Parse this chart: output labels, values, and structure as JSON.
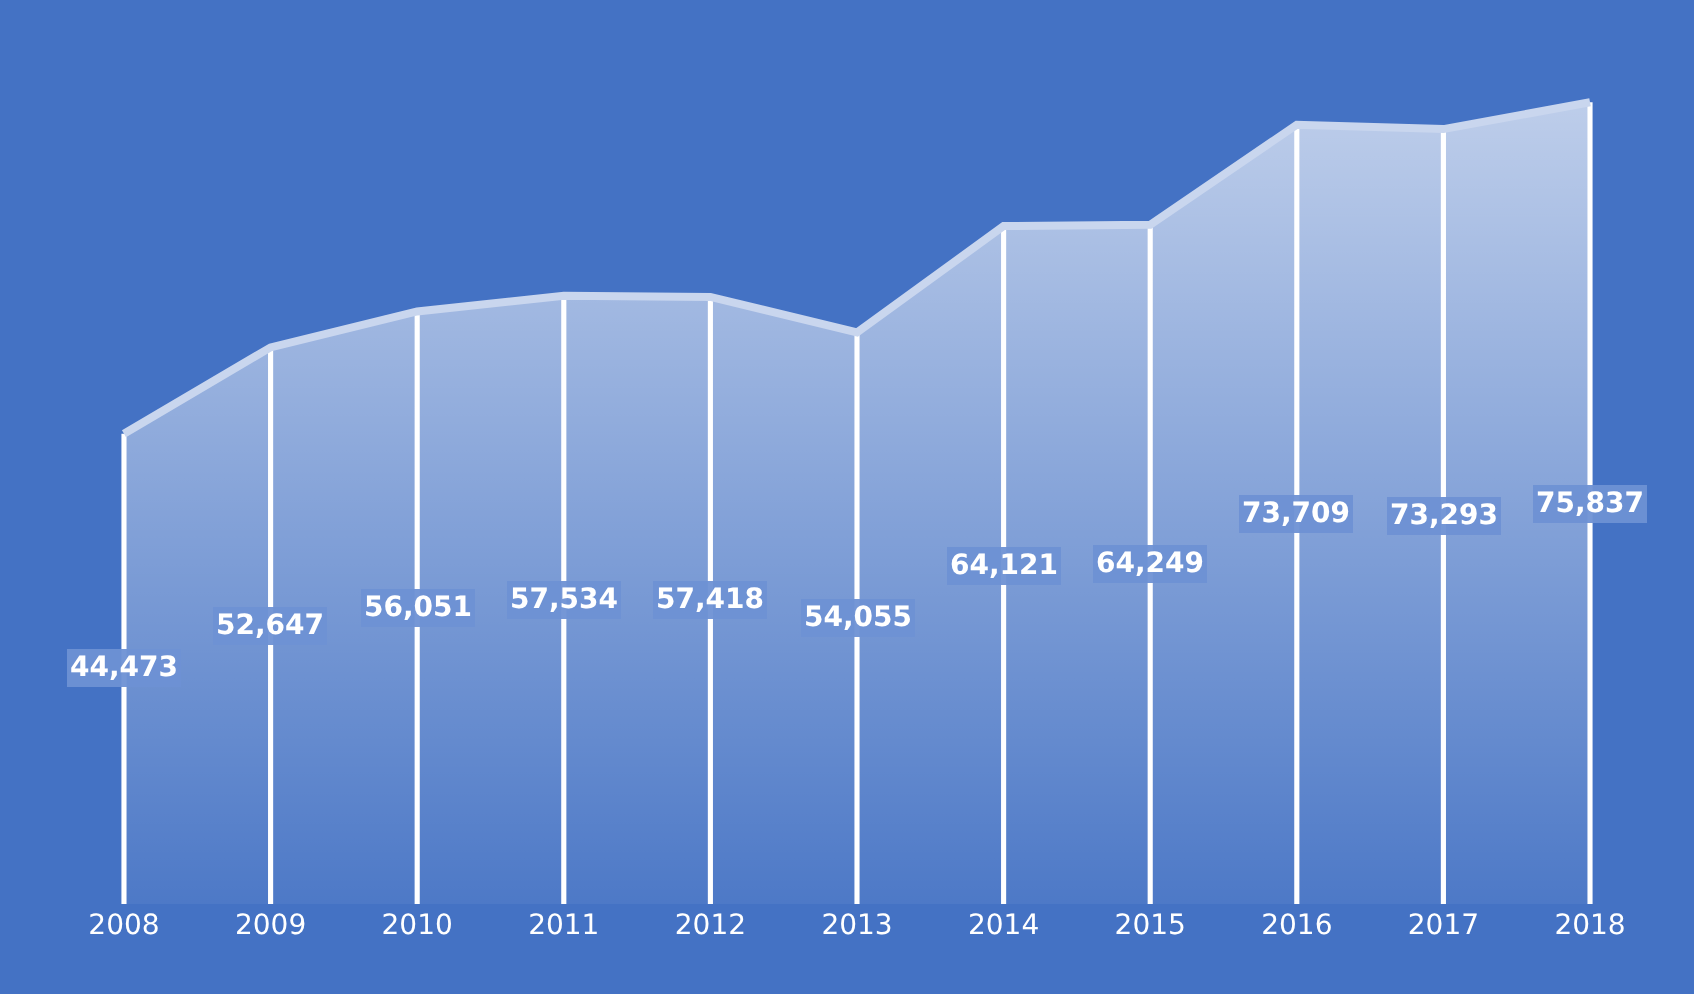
{
  "chart_data": {
    "type": "area",
    "categories": [
      "2008",
      "2009",
      "2010",
      "2011",
      "2012",
      "2013",
      "2014",
      "2015",
      "2016",
      "2017",
      "2018"
    ],
    "series": [
      {
        "color": "#c9d6ee",
        "values": [
          44473,
          52647,
          56051,
          57534,
          57418,
          54055,
          64121,
          64249,
          73709,
          73293,
          75837
        ]
      },
      {
        "type": "bar",
        "color": "#ffffff",
        "values": [
          44473,
          52647,
          56051,
          57534,
          57418,
          54055,
          64121,
          64249,
          73709,
          73293,
          75837
        ],
        "value_labels": [
          "44,473",
          "52,647",
          "56,051",
          "57,534",
          "57,418",
          "54,055",
          "64,121",
          "64,249",
          "73,709",
          "73,293",
          "75,837"
        ]
      }
    ],
    "legend": false,
    "marker": "none",
    "line_style": "solid"
  }
}
